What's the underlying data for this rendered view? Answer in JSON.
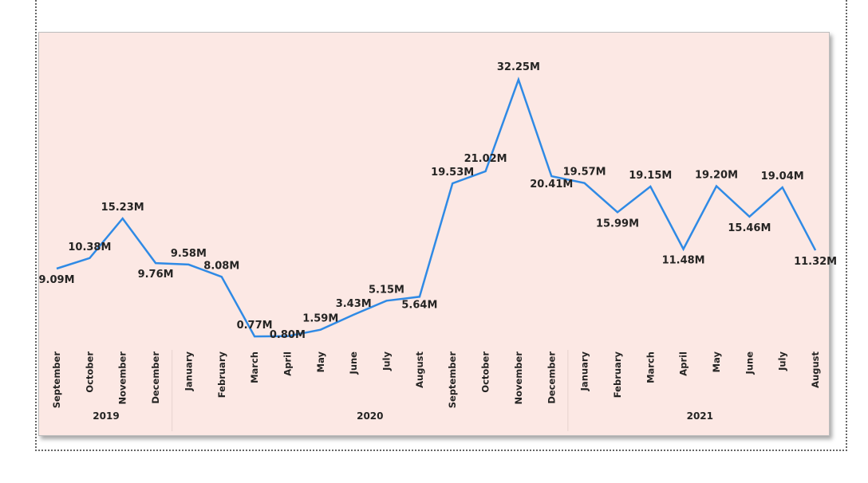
{
  "chart_data": {
    "type": "line",
    "title": "",
    "unit_suffix": "M",
    "line_color": "#2f8ae5",
    "background_color": "#fce8e4",
    "ylim": [
      0,
      34
    ],
    "grid": false,
    "years": [
      {
        "label": "2019",
        "start": 0,
        "count": 4
      },
      {
        "label": "2020",
        "start": 4,
        "count": 12
      },
      {
        "label": "2021",
        "start": 16,
        "count": 8
      }
    ],
    "points": [
      {
        "month": "September",
        "value": 9.09,
        "label": "9.09M"
      },
      {
        "month": "October",
        "value": 10.38,
        "label": "10.38M"
      },
      {
        "month": "November",
        "value": 15.23,
        "label": "15.23M"
      },
      {
        "month": "December",
        "value": 9.76,
        "label": "9.76M"
      },
      {
        "month": "January",
        "value": 9.58,
        "label": "9.58M"
      },
      {
        "month": "February",
        "value": 8.08,
        "label": "8.08M"
      },
      {
        "month": "March",
        "value": 0.77,
        "label": "0.77M"
      },
      {
        "month": "April",
        "value": 0.8,
        "label": "0.80M"
      },
      {
        "month": "May",
        "value": 1.59,
        "label": "1.59M"
      },
      {
        "month": "June",
        "value": 3.43,
        "label": "3.43M"
      },
      {
        "month": "July",
        "value": 5.15,
        "label": "5.15M"
      },
      {
        "month": "August",
        "value": 5.64,
        "label": "5.64M"
      },
      {
        "month": "September",
        "value": 19.53,
        "label": "19.53M"
      },
      {
        "month": "October",
        "value": 21.02,
        "label": "21.02M"
      },
      {
        "month": "November",
        "value": 32.25,
        "label": "32.25M"
      },
      {
        "month": "December",
        "value": 20.41,
        "label": "20.41M"
      },
      {
        "month": "January",
        "value": 19.57,
        "label": "19.57M"
      },
      {
        "month": "February",
        "value": 15.99,
        "label": "15.99M"
      },
      {
        "month": "March",
        "value": 19.15,
        "label": "19.15M"
      },
      {
        "month": "April",
        "value": 11.48,
        "label": "11.48M"
      },
      {
        "month": "May",
        "value": 19.2,
        "label": "19.20M"
      },
      {
        "month": "June",
        "value": 15.46,
        "label": "15.46M"
      },
      {
        "month": "July",
        "value": 19.04,
        "label": "19.04M"
      },
      {
        "month": "August",
        "value": 11.32,
        "label": "11.32M"
      }
    ]
  }
}
